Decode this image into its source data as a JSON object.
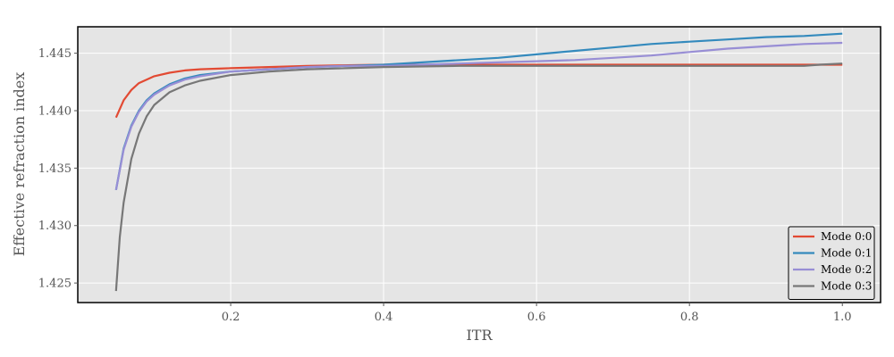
{
  "chart_data": {
    "type": "line",
    "title": "",
    "xlabel": "ITR",
    "ylabel": "Effective refraction index",
    "xlim": [
      0.0,
      1.05
    ],
    "ylim": [
      1.4233,
      1.4473
    ],
    "xticks": [
      0.2,
      0.4,
      0.6,
      0.8,
      1.0
    ],
    "xtick_labels": [
      "0.2",
      "0.4",
      "0.6",
      "0.8",
      "1.0"
    ],
    "yticks": [
      1.425,
      1.43,
      1.435,
      1.44,
      1.445
    ],
    "ytick_labels": [
      "1.425",
      "1.430",
      "1.435",
      "1.440",
      "1.445"
    ],
    "grid": true,
    "legend_position": "bottom-right",
    "background": "#e5e5e5",
    "series": [
      {
        "name": "Mode 0:0",
        "color": "#e24a33",
        "x": [
          0.05,
          0.06,
          0.07,
          0.08,
          0.09,
          0.1,
          0.12,
          0.14,
          0.16,
          0.2,
          0.25,
          0.3,
          0.4,
          0.5,
          0.6,
          0.7,
          0.8,
          0.9,
          1.0
        ],
        "y": [
          1.4394,
          1.4409,
          1.4418,
          1.4424,
          1.4427,
          1.443,
          1.4433,
          1.4435,
          1.4436,
          1.4437,
          1.4438,
          1.4439,
          1.444,
          1.444,
          1.444,
          1.444,
          1.444,
          1.444,
          1.444
        ]
      },
      {
        "name": "Mode 0:1",
        "color": "#348abd",
        "x": [
          0.05,
          0.06,
          0.07,
          0.08,
          0.09,
          0.1,
          0.12,
          0.14,
          0.16,
          0.2,
          0.25,
          0.3,
          0.35,
          0.4,
          0.45,
          0.5,
          0.55,
          0.6,
          0.65,
          0.7,
          0.75,
          0.8,
          0.85,
          0.9,
          0.95,
          1.0
        ],
        "y": [
          1.4331,
          1.4367,
          1.4387,
          1.44,
          1.4409,
          1.4415,
          1.4423,
          1.4428,
          1.4431,
          1.4434,
          1.4436,
          1.4438,
          1.4439,
          1.444,
          1.4442,
          1.4444,
          1.4446,
          1.4449,
          1.4452,
          1.4455,
          1.4458,
          1.446,
          1.4462,
          1.4464,
          1.4465,
          1.4467
        ]
      },
      {
        "name": "Mode 0:2",
        "color": "#988ed5",
        "x": [
          0.05,
          0.06,
          0.07,
          0.08,
          0.09,
          0.1,
          0.12,
          0.14,
          0.16,
          0.2,
          0.25,
          0.3,
          0.35,
          0.4,
          0.45,
          0.5,
          0.55,
          0.6,
          0.65,
          0.7,
          0.75,
          0.8,
          0.85,
          0.9,
          0.95,
          1.0
        ],
        "y": [
          1.4331,
          1.4366,
          1.4386,
          1.4399,
          1.4408,
          1.4414,
          1.4422,
          1.4427,
          1.443,
          1.4434,
          1.4436,
          1.4438,
          1.4439,
          1.4439,
          1.444,
          1.4441,
          1.4442,
          1.4443,
          1.4444,
          1.4446,
          1.4448,
          1.4451,
          1.4454,
          1.4456,
          1.4458,
          1.4459
        ]
      },
      {
        "name": "Mode 0:3",
        "color": "#777777",
        "x": [
          0.05,
          0.055,
          0.06,
          0.07,
          0.08,
          0.09,
          0.1,
          0.12,
          0.14,
          0.16,
          0.2,
          0.25,
          0.3,
          0.35,
          0.4,
          0.5,
          0.6,
          0.7,
          0.8,
          0.9,
          0.95,
          0.97,
          1.0
        ],
        "y": [
          1.4243,
          1.429,
          1.432,
          1.4358,
          1.438,
          1.4395,
          1.4405,
          1.4416,
          1.4422,
          1.4426,
          1.4431,
          1.4434,
          1.4436,
          1.4437,
          1.4438,
          1.4439,
          1.4439,
          1.4439,
          1.4439,
          1.4439,
          1.4439,
          1.444,
          1.4441
        ]
      }
    ]
  }
}
